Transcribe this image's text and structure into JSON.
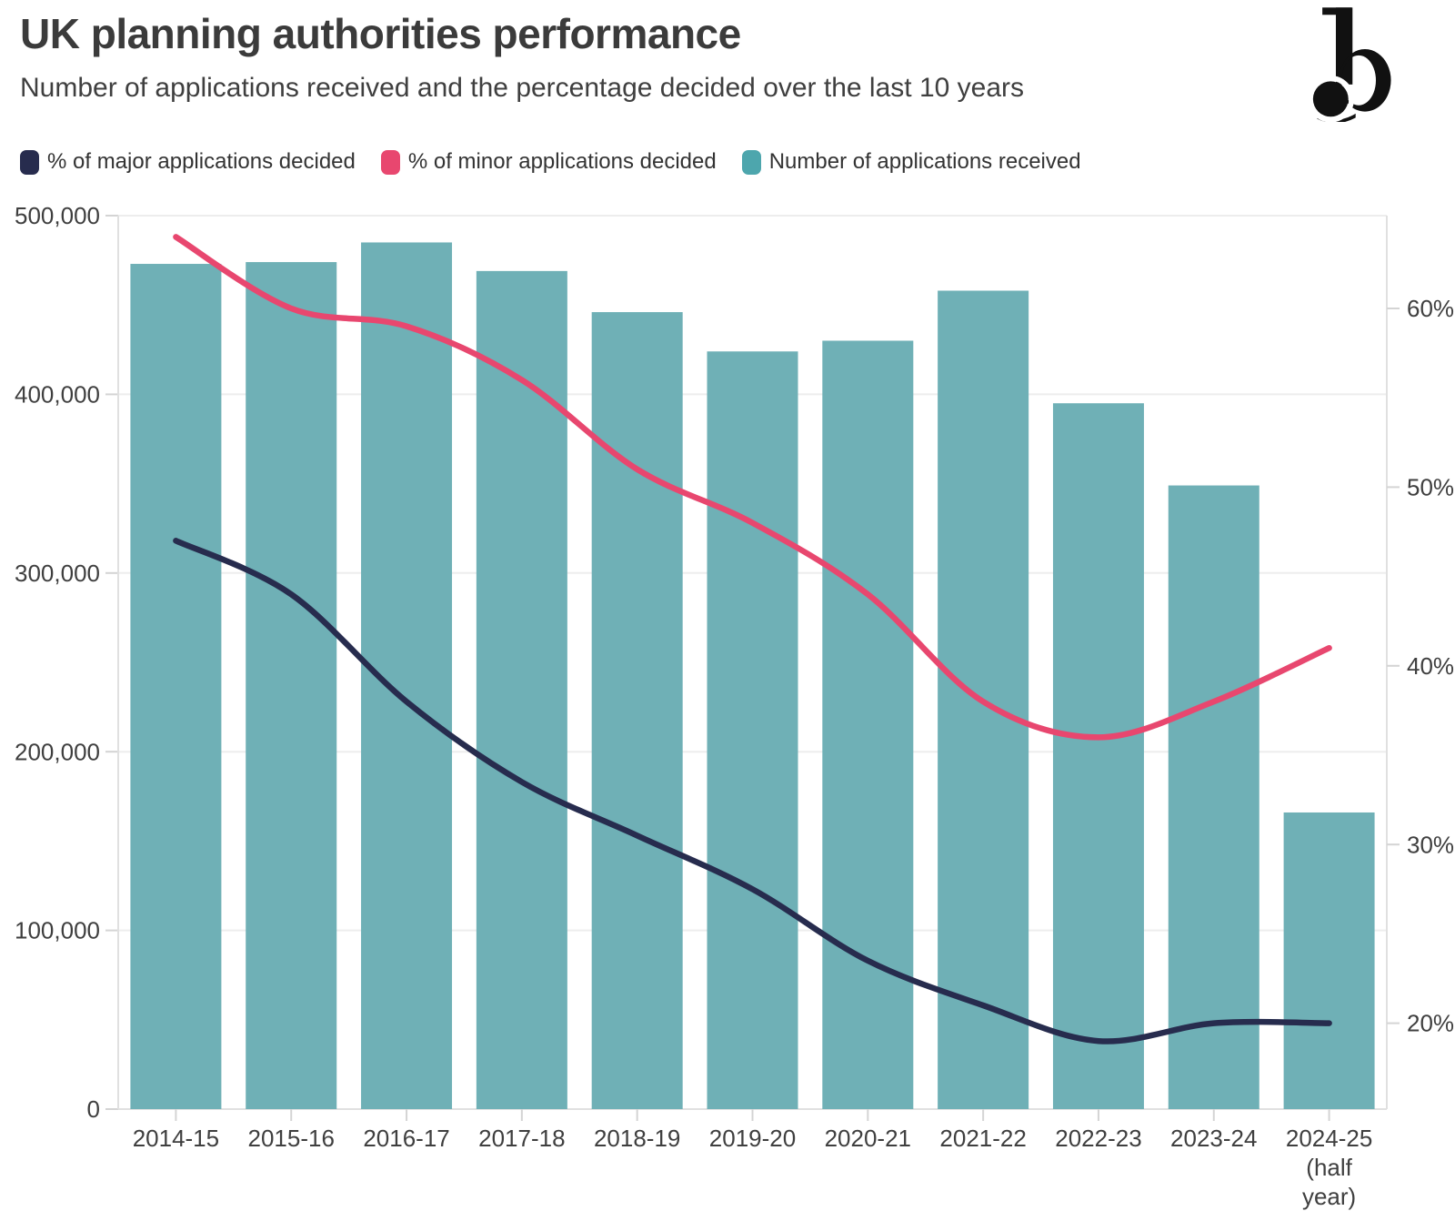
{
  "header": {
    "title": "UK planning authorities performance",
    "subtitle": "Number of applications received and the percentage decided over the last 10 years"
  },
  "logo": {
    "name": "b-logo",
    "color": "#111111"
  },
  "legend": [
    {
      "label": "% of major applications decided",
      "color": "#272c4e"
    },
    {
      "label": "% of minor applications decided",
      "color": "#e8476f"
    },
    {
      "label": "Number of applications received",
      "color": "#4da6ad"
    }
  ],
  "colors": {
    "bar": "#6fb0b6",
    "line_major": "#272c4e",
    "line_minor": "#e8476f",
    "grid": "#ededed",
    "axis": "#e0e0e0",
    "tick": "#d4d4d4",
    "label": "#3f3f3f"
  },
  "chart_data": {
    "type": "bar+line",
    "title": "UK planning authorities performance",
    "categories": [
      "2014-15",
      "2015-16",
      "2016-17",
      "2017-18",
      "2018-19",
      "2019-20",
      "2020-21",
      "2021-22",
      "2022-23",
      "2023-24",
      "2024-25 (half year)"
    ],
    "category_label_lines": [
      [
        "2014-15"
      ],
      [
        "2015-16"
      ],
      [
        "2016-17"
      ],
      [
        "2017-18"
      ],
      [
        "2018-19"
      ],
      [
        "2019-20"
      ],
      [
        "2020-21"
      ],
      [
        "2021-22"
      ],
      [
        "2022-23"
      ],
      [
        "2023-24"
      ],
      [
        "2024-25",
        "(half",
        "year)"
      ]
    ],
    "bar_series": {
      "name": "Number of applications received",
      "axis": "left",
      "values": [
        473000,
        474000,
        485000,
        469000,
        446000,
        424000,
        430000,
        458000,
        395000,
        349000,
        166000
      ]
    },
    "line_series": [
      {
        "name": "% of major applications decided",
        "axis": "right",
        "values": [
          47,
          44,
          38,
          33.5,
          30.5,
          27.5,
          23.5,
          21,
          19,
          20,
          20
        ]
      },
      {
        "name": "% of minor applications decided",
        "axis": "right",
        "values": [
          64,
          60,
          59,
          56,
          51,
          48,
          44,
          38,
          36,
          38,
          41
        ]
      }
    ],
    "left_axis": {
      "range": [
        0,
        500000
      ],
      "ticks": [
        0,
        100000,
        200000,
        300000,
        400000,
        500000
      ],
      "tick_labels": [
        "0",
        "100,000",
        "200,000",
        "300,000",
        "400,000",
        "500,000"
      ]
    },
    "right_axis": {
      "unit": "%",
      "ticks": [
        20,
        30,
        40,
        50,
        60
      ],
      "tick_labels": [
        "20%",
        "30%",
        "40%",
        "50%",
        "60%"
      ]
    },
    "grid": "horizontal",
    "legend_position": "top-left"
  }
}
